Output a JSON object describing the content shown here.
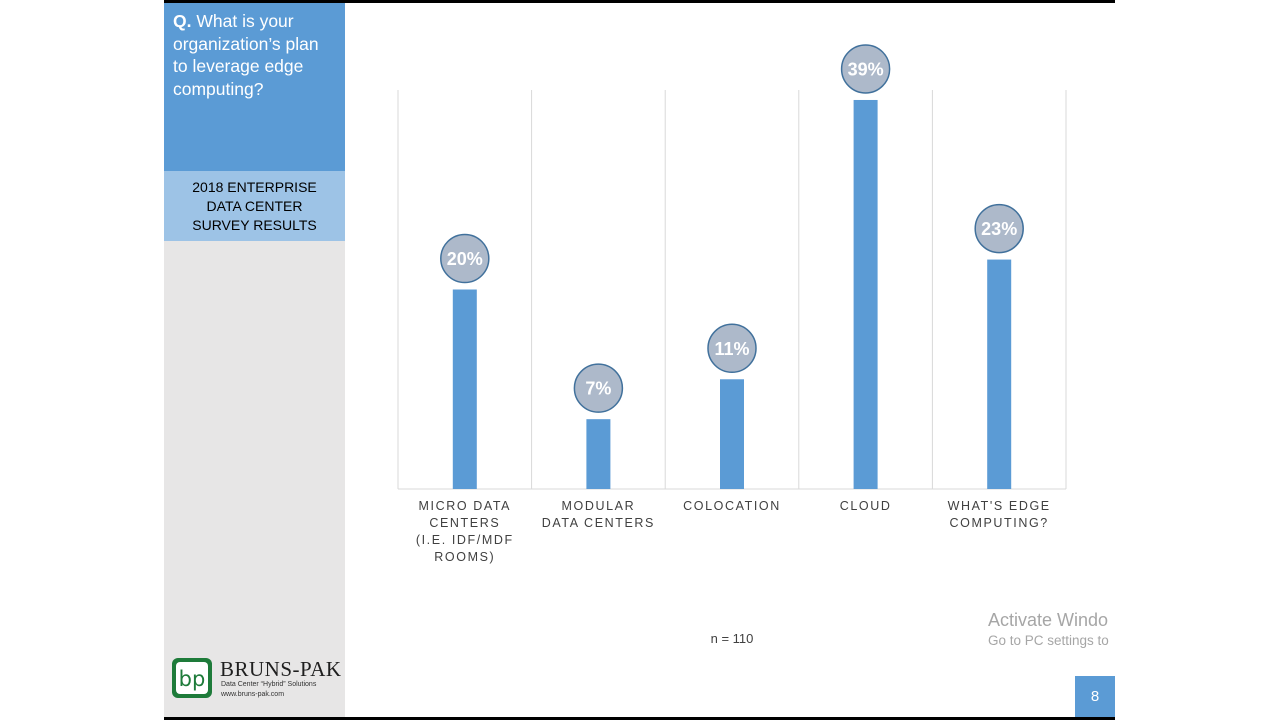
{
  "question": {
    "prefix": "Q.",
    "text": "What is your organization’s plan to leverage edge computing?"
  },
  "survey_label": "2018 ENTERPRISE DATA CENTER SURVEY RESULTS",
  "logo": {
    "mark": "bp",
    "name": "BRUNS-PAK",
    "tagline": "Data Center “Hybrid” Solutions",
    "url": "www.bruns-pak.com"
  },
  "sample_size": "n = 110",
  "watermark": {
    "title": "Activate Windo",
    "subtitle": "Go to PC settings to"
  },
  "page_number": "8",
  "colors": {
    "bar": "#5b9bd5",
    "bubble_fill": "#adb9ca",
    "bubble_stroke": "#41719c",
    "sidebar_dark": "#5b9bd5",
    "sidebar_light": "#9dc3e6",
    "sidebar_gray": "#e7e6e6"
  },
  "chart_data": {
    "type": "bar",
    "categories": [
      [
        "MICRO DATA",
        "CENTERS",
        "(I.E. IDF/MDF",
        "ROOMS)"
      ],
      [
        "MODULAR",
        "DATA CENTERS"
      ],
      [
        "COLOCATION"
      ],
      [
        "CLOUD"
      ],
      [
        "WHAT'S EDGE",
        "COMPUTING?"
      ]
    ],
    "values": [
      20,
      7,
      11,
      39,
      23
    ],
    "data_labels": [
      "20%",
      "7%",
      "11%",
      "39%",
      "23%"
    ],
    "ylim": [
      0,
      40
    ],
    "grid": "vertical separators",
    "legend": "none"
  }
}
